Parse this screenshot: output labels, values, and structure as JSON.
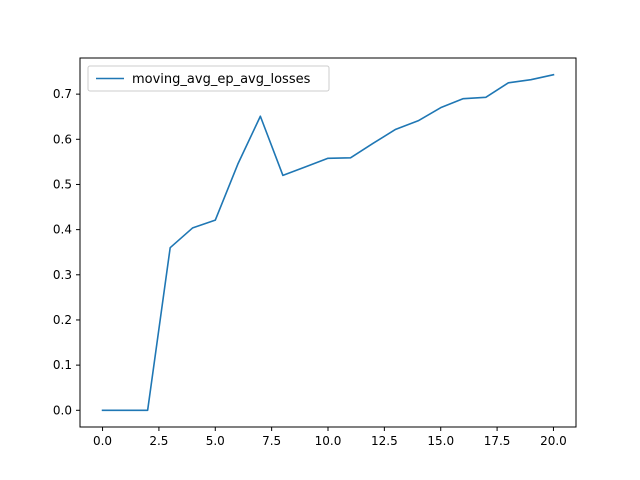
{
  "chart_data": {
    "type": "line",
    "title": "",
    "xlabel": "",
    "ylabel": "",
    "xlim": [
      -1.0,
      21.0
    ],
    "ylim": [
      -0.037,
      0.78
    ],
    "x_ticks": [
      0.0,
      2.5,
      5.0,
      7.5,
      10.0,
      12.5,
      15.0,
      17.5,
      20.0
    ],
    "x_tick_labels": [
      "0.0",
      "2.5",
      "5.0",
      "7.5",
      "10.0",
      "12.5",
      "15.0",
      "17.5",
      "20.0"
    ],
    "y_ticks": [
      0.0,
      0.1,
      0.2,
      0.3,
      0.4,
      0.5,
      0.6,
      0.7
    ],
    "y_tick_labels": [
      "0.0",
      "0.1",
      "0.2",
      "0.3",
      "0.4",
      "0.5",
      "0.6",
      "0.7"
    ],
    "grid": false,
    "legend_position": "upper left",
    "series": [
      {
        "name": "moving_avg_ep_avg_losses",
        "color": "#1f77b4",
        "x": [
          0,
          1,
          2,
          3,
          4,
          5,
          6,
          7,
          8,
          9,
          10,
          11,
          12,
          13,
          14,
          15,
          16,
          17,
          18,
          19,
          20
        ],
        "values": [
          0.0,
          0.0,
          0.0,
          0.36,
          0.404,
          0.421,
          0.545,
          0.651,
          0.52,
          0.539,
          0.558,
          0.559,
          0.591,
          0.622,
          0.641,
          0.67,
          0.69,
          0.693,
          0.725,
          0.732,
          0.743
        ]
      }
    ]
  }
}
